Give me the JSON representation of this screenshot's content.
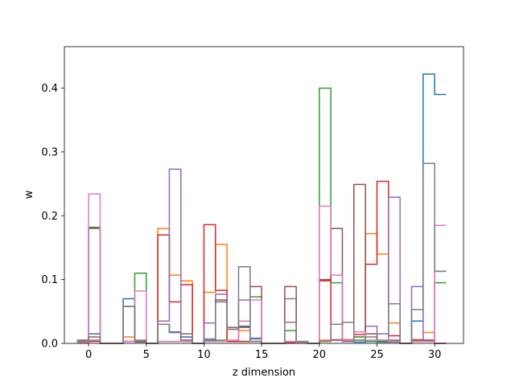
{
  "chart_data": {
    "type": "step",
    "title": "",
    "xlabel": "z dimension",
    "ylabel": "w",
    "xlim": [
      -2.1,
      32.5
    ],
    "ylim": [
      0,
      0.465
    ],
    "x_ticks": [
      0,
      5,
      10,
      15,
      20,
      25,
      30
    ],
    "y_ticks": [
      0.0,
      0.1,
      0.2,
      0.3,
      0.4
    ],
    "x": [
      0,
      1,
      2,
      3,
      4,
      5,
      6,
      7,
      8,
      9,
      10,
      11,
      12,
      13,
      14,
      15,
      16,
      17,
      18,
      19,
      20,
      21,
      22,
      23,
      24,
      25,
      26,
      27,
      28,
      29,
      30,
      31
    ],
    "series": [
      {
        "color": "#1f77b4",
        "values": [
          0.003,
          0.015,
          0,
          0,
          0.07,
          0.003,
          0,
          0.03,
          0.018,
          0.01,
          0,
          0.005,
          0.065,
          0.003,
          0.027,
          0.008,
          0,
          0,
          0.001,
          0.001,
          0,
          0.004,
          0.005,
          0.003,
          0.002,
          0.003,
          0.002,
          0.002,
          0,
          0.035,
          0.422,
          0.39
        ]
      },
      {
        "color": "#ff7f0e",
        "values": [
          0.002,
          0.01,
          0,
          0,
          0.01,
          0.003,
          0,
          0.18,
          0.107,
          0.098,
          0,
          0.08,
          0.155,
          0.003,
          0.02,
          0.003,
          0,
          0,
          0.001,
          0.001,
          0,
          0.005,
          0.006,
          0.006,
          0.01,
          0.172,
          0.14,
          0.032,
          0,
          0.006,
          0.017,
          0
        ]
      },
      {
        "color": "#2ca02c",
        "values": [
          0.001,
          0.18,
          0,
          0,
          0.003,
          0.11,
          0,
          0.003,
          0.003,
          0.003,
          0,
          0.003,
          0.005,
          0.003,
          0.003,
          0.073,
          0,
          0,
          0.02,
          0.001,
          0,
          0.4,
          0.095,
          0.005,
          0.01,
          0.003,
          0.003,
          0.003,
          0,
          0.003,
          0.003,
          0.095
        ]
      },
      {
        "color": "#d62728",
        "values": [
          0.002,
          0.003,
          0,
          0,
          0.003,
          0.003,
          0,
          0.17,
          0.065,
          0.092,
          0,
          0.186,
          0.083,
          0.003,
          0.003,
          0.003,
          0,
          0,
          0.001,
          0.001,
          0,
          0.098,
          0.005,
          0.005,
          0.014,
          0.124,
          0.254,
          0.012,
          0,
          0.005,
          0.005,
          0
        ]
      },
      {
        "color": "#9467bd",
        "values": [
          0.002,
          0.005,
          0,
          0,
          0.003,
          0.003,
          0,
          0.035,
          0.273,
          0.015,
          0,
          0.032,
          0.077,
          0.022,
          0.068,
          0.007,
          0,
          0,
          0.07,
          0.001,
          0,
          0.003,
          0.005,
          0.003,
          0.005,
          0.027,
          0.005,
          0.229,
          0,
          0.089,
          0.005,
          0
        ]
      },
      {
        "color": "#8c564b",
        "values": [
          0.005,
          0.182,
          0,
          0,
          0.058,
          0.002,
          0,
          0.03,
          0.017,
          0.005,
          0,
          0.003,
          0.068,
          0.025,
          0.025,
          0.089,
          0,
          0,
          0.089,
          0.003,
          0,
          0.1,
          0.18,
          0.005,
          0.249,
          0.015,
          0.005,
          0.005,
          0,
          0.005,
          0.005,
          0.113
        ]
      },
      {
        "color": "#e377c2",
        "values": [
          0.001,
          0.234,
          0,
          0,
          0.003,
          0.082,
          0,
          0.003,
          0.003,
          0.003,
          0,
          0.003,
          0.003,
          0.005,
          0.035,
          0.068,
          0,
          0,
          0.003,
          0.001,
          0,
          0.215,
          0.107,
          0.005,
          0.018,
          0.005,
          0.005,
          0.003,
          0,
          0.003,
          0.003,
          0.185
        ]
      },
      {
        "color": "#7f7f7f",
        "values": [
          0.003,
          0.01,
          0,
          0,
          0.058,
          0.005,
          0,
          0.03,
          0.017,
          0.015,
          0,
          0.007,
          0.065,
          0.022,
          0.12,
          0.003,
          0,
          0,
          0.033,
          0.003,
          0,
          0.003,
          0.03,
          0.033,
          0.005,
          0.01,
          0.015,
          0.062,
          0,
          0.053,
          0.282,
          0.113
        ]
      }
    ]
  }
}
